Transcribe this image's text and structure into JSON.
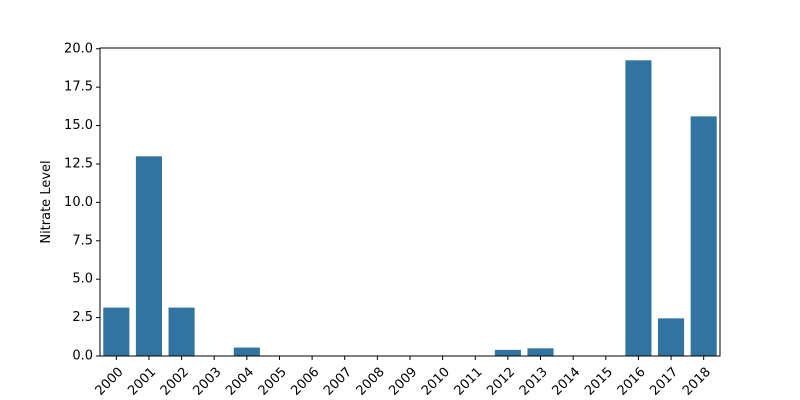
{
  "chart_data": {
    "type": "bar",
    "title": "",
    "xlabel": "",
    "ylabel": "Nitrate Level",
    "categories": [
      "2000",
      "2001",
      "2002",
      "2003",
      "2004",
      "2005",
      "2006",
      "2007",
      "2008",
      "2009",
      "2010",
      "2011",
      "2012",
      "2013",
      "2014",
      "2015",
      "2016",
      "2017",
      "2018"
    ],
    "values": [
      3.15,
      13.0,
      3.15,
      0,
      0.55,
      0,
      0,
      0,
      0,
      0,
      0,
      0,
      0.4,
      0.5,
      0,
      0,
      19.25,
      2.45,
      15.6
    ],
    "ylim": [
      0,
      20.05
    ],
    "yticks": [
      "0.0",
      "2.5",
      "5.0",
      "7.5",
      "10.0",
      "12.5",
      "15.0",
      "17.5",
      "20.0"
    ],
    "grid": false,
    "legend": "none",
    "bar_color": "#3274a1"
  }
}
